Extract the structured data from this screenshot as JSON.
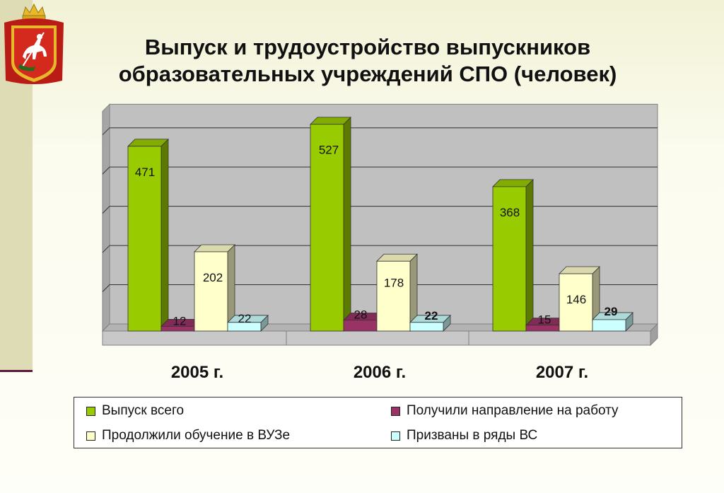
{
  "slide": {
    "title_line1": "Выпуск и трудоустройство выпускников",
    "title_line2": "образовательных учреждений СПО (человек)"
  },
  "colors": {
    "accent": "#5a1840",
    "band": "#dedcb4",
    "emblem_red": "#d42a1e",
    "emblem_gold": "#e7b82a"
  },
  "icons": {
    "emblem": "moscow-oblast-coat-of-arms-icon"
  },
  "chart_data": {
    "type": "bar",
    "title": "Выпуск и трудоустройство выпускников образовательных учреждений СПО (человек)",
    "categories": [
      "2005 г.",
      "2006 г.",
      "2007 г."
    ],
    "series": [
      {
        "name": "Выпуск всего",
        "values": [
          471,
          527,
          368
        ],
        "color": "#99cc00"
      },
      {
        "name": "Получили направление на работу",
        "values": [
          12,
          28,
          15
        ],
        "color": "#993366"
      },
      {
        "name": "Продолжили обучение в ВУЗе",
        "values": [
          202,
          178,
          146
        ],
        "color": "#ffffcc"
      },
      {
        "name": "Призваны в ряды ВС",
        "values": [
          22,
          22,
          29
        ],
        "color": "#ccffff"
      }
    ],
    "ylim": [
      0,
      560
    ],
    "grid": true,
    "legend_position": "bottom",
    "style_3d": true
  }
}
